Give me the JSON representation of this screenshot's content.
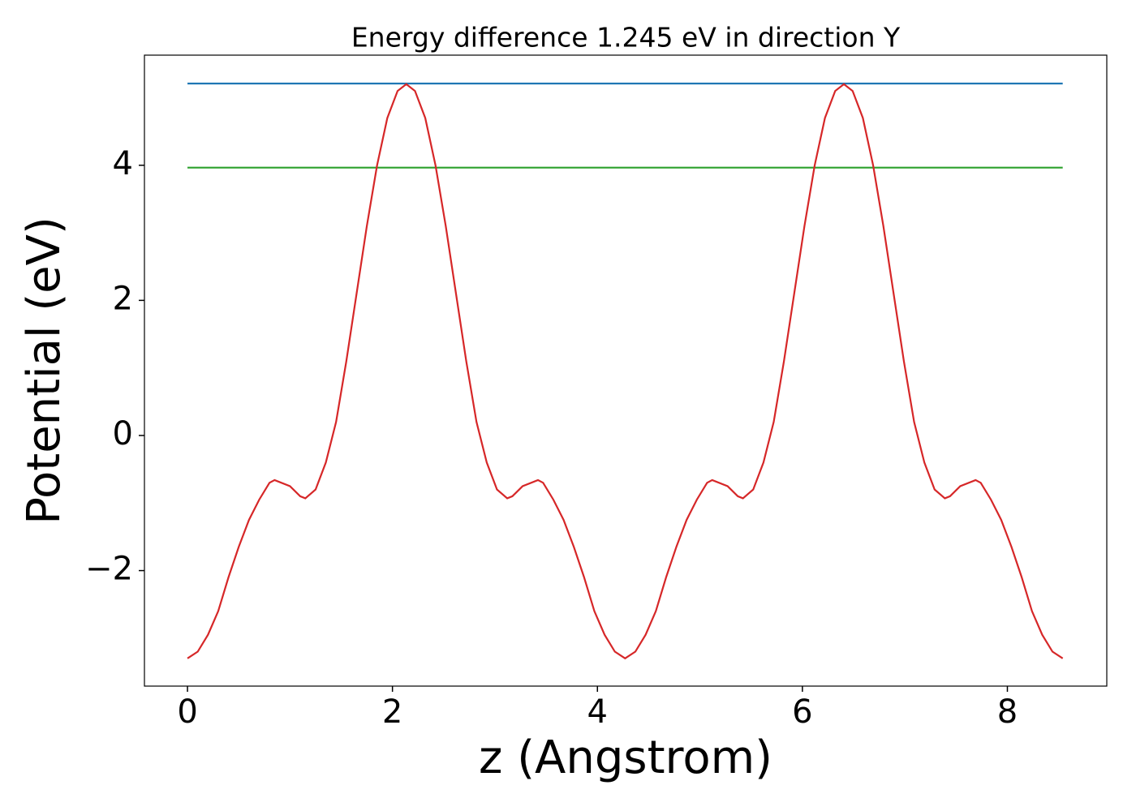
{
  "chart_data": {
    "type": "line",
    "title": "Energy difference 1.245 eV in direction Y",
    "xlabel": "z (Angstrom)",
    "ylabel": "Potential (eV)",
    "xlim": [
      -0.42,
      8.97
    ],
    "ylim": [
      -3.71,
      5.63
    ],
    "xticks": [
      0,
      2,
      4,
      6,
      8
    ],
    "yticks": [
      {
        "value": -2,
        "label": "−2"
      },
      0,
      2,
      4
    ],
    "series": [
      {
        "color": "#1f77b4",
        "x": [
          0,
          8.54
        ],
        "values": [
          5.21,
          5.21
        ]
      },
      {
        "color": "#2ca02c",
        "x": [
          0,
          8.54
        ],
        "values": [
          3.965,
          3.965
        ]
      },
      {
        "color": "#d62728",
        "x": [
          0,
          0.1,
          0.2,
          0.3,
          0.4,
          0.5,
          0.6,
          0.7,
          0.8,
          0.85,
          1.0,
          1.1,
          1.15,
          1.25,
          1.35,
          1.45,
          1.55,
          1.65,
          1.75,
          1.85,
          1.95,
          2.05,
          2.135,
          2.22,
          2.32,
          2.42,
          2.52,
          2.62,
          2.72,
          2.82,
          2.92,
          3.02,
          3.12,
          3.17,
          3.27,
          3.42,
          3.47,
          3.57,
          3.67,
          3.77,
          3.87,
          3.97,
          4.07,
          4.17,
          4.27,
          4.37,
          4.47,
          4.57,
          4.67,
          4.77,
          4.87,
          4.97,
          5.07,
          5.12,
          5.27,
          5.37,
          5.42,
          5.52,
          5.62,
          5.72,
          5.82,
          5.92,
          6.02,
          6.12,
          6.22,
          6.32,
          6.405,
          6.49,
          6.59,
          6.69,
          6.79,
          6.89,
          6.99,
          7.09,
          7.19,
          7.29,
          7.39,
          7.44,
          7.54,
          7.69,
          7.74,
          7.84,
          7.94,
          8.04,
          8.14,
          8.24,
          8.34,
          8.44,
          8.54
        ],
        "values": [
          -3.3,
          -3.2,
          -2.95,
          -2.6,
          -2.1,
          -1.65,
          -1.25,
          -0.95,
          -0.7,
          -0.66,
          -0.75,
          -0.9,
          -0.93,
          -0.8,
          -0.4,
          0.2,
          1.1,
          2.1,
          3.1,
          4.0,
          4.7,
          5.1,
          5.2,
          5.1,
          4.7,
          4.0,
          3.1,
          2.1,
          1.1,
          0.2,
          -0.4,
          -0.8,
          -0.93,
          -0.9,
          -0.75,
          -0.66,
          -0.7,
          -0.95,
          -1.25,
          -1.65,
          -2.1,
          -2.6,
          -2.95,
          -3.2,
          -3.3,
          -3.2,
          -2.95,
          -2.6,
          -2.1,
          -1.65,
          -1.25,
          -0.95,
          -0.7,
          -0.66,
          -0.75,
          -0.9,
          -0.93,
          -0.8,
          -0.4,
          0.2,
          1.1,
          2.1,
          3.1,
          4.0,
          4.7,
          5.1,
          5.2,
          5.1,
          4.7,
          4.0,
          3.1,
          2.1,
          1.1,
          0.2,
          -0.4,
          -0.8,
          -0.93,
          -0.9,
          -0.75,
          -0.66,
          -0.7,
          -0.95,
          -1.25,
          -1.65,
          -2.1,
          -2.6,
          -2.95,
          -3.2,
          -3.3
        ]
      }
    ]
  }
}
